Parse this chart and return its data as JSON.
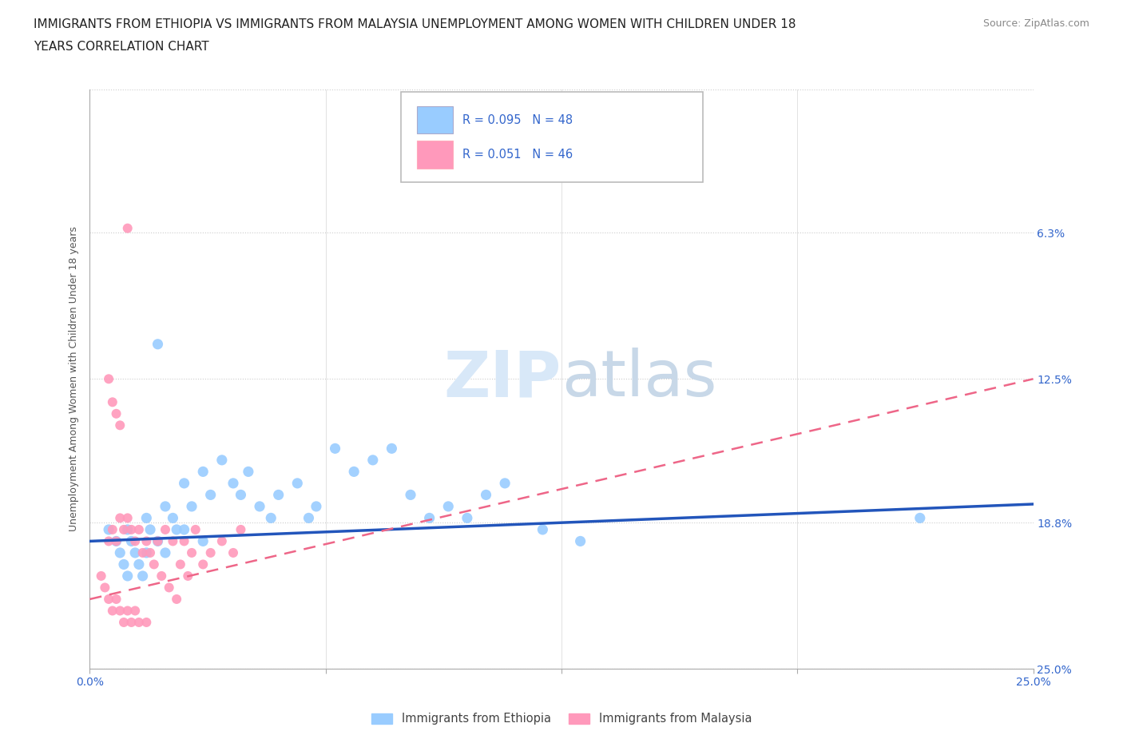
{
  "title_line1": "IMMIGRANTS FROM ETHIOPIA VS IMMIGRANTS FROM MALAYSIA UNEMPLOYMENT AMONG WOMEN WITH CHILDREN UNDER 18",
  "title_line2": "YEARS CORRELATION CHART",
  "source": "Source: ZipAtlas.com",
  "ylabel": "Unemployment Among Women with Children Under 18 years",
  "xlim": [
    0.0,
    0.25
  ],
  "ylim": [
    0.0,
    0.25
  ],
  "yticks": [
    0.0,
    0.063,
    0.125,
    0.188,
    0.25
  ],
  "xticks": [
    0.0,
    0.0625,
    0.125,
    0.1875,
    0.25
  ],
  "xtick_labels": [
    "0.0%",
    "",
    "",
    "",
    "25.0%"
  ],
  "right_ytick_labels": [
    "25.0%",
    "18.8%",
    "12.5%",
    "6.3%",
    ""
  ],
  "blue_R": 0.095,
  "blue_N": 48,
  "pink_R": 0.051,
  "pink_N": 46,
  "blue_color": "#99CCFF",
  "pink_color": "#FF99BB",
  "blue_line_color": "#2255BB",
  "pink_line_color": "#EE6688",
  "grid_color": "#CCCCCC",
  "legend_label_blue": "Immigrants from Ethiopia",
  "legend_label_pink": "Immigrants from Malaysia",
  "blue_line_y0": 0.055,
  "blue_line_y1": 0.071,
  "pink_line_y0": 0.03,
  "pink_line_y1": 0.125,
  "blue_scatter_x": [
    0.005,
    0.007,
    0.008,
    0.009,
    0.01,
    0.01,
    0.011,
    0.012,
    0.013,
    0.014,
    0.015,
    0.015,
    0.016,
    0.018,
    0.02,
    0.02,
    0.022,
    0.023,
    0.025,
    0.025,
    0.027,
    0.03,
    0.03,
    0.032,
    0.035,
    0.038,
    0.04,
    0.042,
    0.045,
    0.048,
    0.05,
    0.055,
    0.058,
    0.06,
    0.065,
    0.07,
    0.075,
    0.08,
    0.085,
    0.09,
    0.095,
    0.1,
    0.105,
    0.11,
    0.12,
    0.13,
    0.22,
    0.018
  ],
  "blue_scatter_y": [
    0.06,
    0.055,
    0.05,
    0.045,
    0.06,
    0.04,
    0.055,
    0.05,
    0.045,
    0.04,
    0.065,
    0.05,
    0.06,
    0.055,
    0.07,
    0.05,
    0.065,
    0.06,
    0.08,
    0.06,
    0.07,
    0.085,
    0.055,
    0.075,
    0.09,
    0.08,
    0.075,
    0.085,
    0.07,
    0.065,
    0.075,
    0.08,
    0.065,
    0.07,
    0.095,
    0.085,
    0.09,
    0.095,
    0.075,
    0.065,
    0.07,
    0.065,
    0.075,
    0.08,
    0.06,
    0.055,
    0.065,
    0.14
  ],
  "pink_scatter_x": [
    0.003,
    0.004,
    0.005,
    0.005,
    0.006,
    0.006,
    0.007,
    0.007,
    0.008,
    0.008,
    0.009,
    0.009,
    0.01,
    0.01,
    0.011,
    0.011,
    0.012,
    0.012,
    0.013,
    0.013,
    0.014,
    0.015,
    0.015,
    0.016,
    0.017,
    0.018,
    0.019,
    0.02,
    0.021,
    0.022,
    0.023,
    0.024,
    0.025,
    0.026,
    0.027,
    0.028,
    0.03,
    0.032,
    0.035,
    0.038,
    0.04,
    0.005,
    0.006,
    0.007,
    0.008,
    0.01
  ],
  "pink_scatter_y": [
    0.04,
    0.035,
    0.055,
    0.03,
    0.06,
    0.025,
    0.055,
    0.03,
    0.065,
    0.025,
    0.06,
    0.02,
    0.065,
    0.025,
    0.06,
    0.02,
    0.055,
    0.025,
    0.06,
    0.02,
    0.05,
    0.055,
    0.02,
    0.05,
    0.045,
    0.055,
    0.04,
    0.06,
    0.035,
    0.055,
    0.03,
    0.045,
    0.055,
    0.04,
    0.05,
    0.06,
    0.045,
    0.05,
    0.055,
    0.05,
    0.06,
    0.125,
    0.115,
    0.11,
    0.105,
    0.19
  ]
}
